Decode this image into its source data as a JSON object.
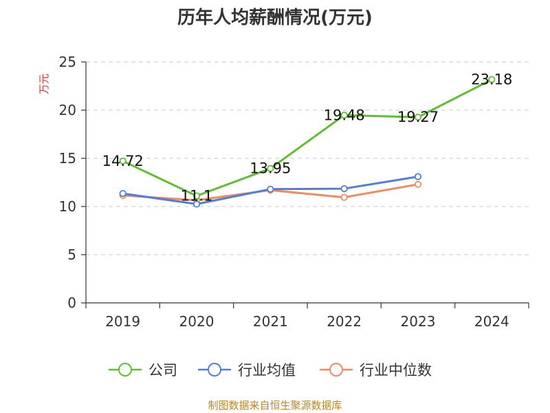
{
  "chart_data": {
    "type": "line",
    "title": "历年人均薪酬情况(万元)",
    "ylabel": "万元",
    "xlabel": "",
    "categories": [
      "2019",
      "2020",
      "2021",
      "2022",
      "2023",
      "2024"
    ],
    "ylim": [
      0,
      25
    ],
    "yticks": [
      0,
      5,
      10,
      15,
      20,
      25
    ],
    "grid": "horizontal-dashed",
    "legend_position": "bottom",
    "series": [
      {
        "name": "公司",
        "color": "#5ac02e",
        "values": [
          14.72,
          11.1,
          13.95,
          19.48,
          19.27,
          23.18
        ],
        "labels": [
          "14.72",
          "11.1",
          "13.95",
          "19.48",
          "19.27",
          "23.18"
        ]
      },
      {
        "name": "行业均值",
        "color": "#4f7fd6",
        "values": [
          11.35,
          10.25,
          11.8,
          11.85,
          13.1,
          null
        ]
      },
      {
        "name": "行业中位数",
        "color": "#f28a5c",
        "values": [
          11.15,
          10.65,
          11.7,
          10.95,
          12.3,
          null
        ]
      }
    ]
  },
  "source": "制图数据来自恒生聚源数据库"
}
